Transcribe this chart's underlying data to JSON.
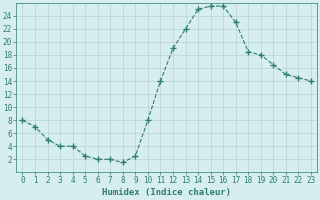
{
  "x": [
    0,
    1,
    2,
    3,
    4,
    5,
    6,
    7,
    8,
    9,
    10,
    11,
    12,
    13,
    14,
    15,
    16,
    17,
    18,
    19,
    20,
    21,
    22,
    23
  ],
  "y": [
    8,
    7,
    5,
    4,
    4,
    2.5,
    2,
    2,
    1.5,
    2.5,
    8,
    14,
    19,
    22,
    25,
    25.5,
    25.5,
    23,
    18.5,
    18,
    16.5,
    15,
    14.5,
    14
  ],
  "line_color": "#2e7d6e",
  "marker": "+",
  "marker_size": 4,
  "bg_color": "#d6eeee",
  "grid_color": "#b8d4d4",
  "spine_color": "#2e7d6e",
  "xlabel": "Humidex (Indice chaleur)",
  "xlim": [
    -0.5,
    23.5
  ],
  "ylim": [
    0,
    26
  ],
  "yticks": [
    2,
    4,
    6,
    8,
    10,
    12,
    14,
    16,
    18,
    20,
    22,
    24
  ],
  "xticks": [
    0,
    1,
    2,
    3,
    4,
    5,
    6,
    7,
    8,
    9,
    10,
    11,
    12,
    13,
    14,
    15,
    16,
    17,
    18,
    19,
    20,
    21,
    22,
    23
  ],
  "font_color": "#2e7d6e",
  "tick_font_size": 5.5,
  "xlabel_fontsize": 6.5,
  "linewidth": 0.8,
  "marker_linewidth": 1.0
}
